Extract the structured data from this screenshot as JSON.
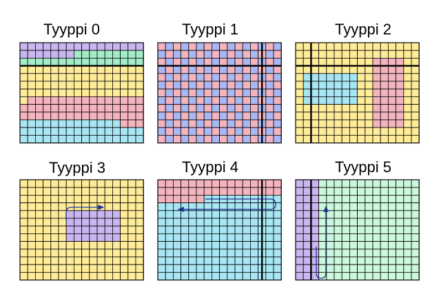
{
  "colors": {
    "purple": "#c9b6f0",
    "green": "#a4ecc8",
    "yellow": "#ffec99",
    "pink": "#f4b4be",
    "cyan": "#a8e6f4",
    "blue": "#a9b8f4",
    "lightgreen": "#ccf8dc",
    "grid": "#000000",
    "arrow": "#1e2f94"
  },
  "panels": [
    {
      "title": "Tyyppi 0"
    },
    {
      "title": "Tyyppi 1"
    },
    {
      "title": "Tyyppi 2"
    },
    {
      "title": "Tyyppi 3"
    },
    {
      "title": "Tyyppi 4"
    },
    {
      "title": "Tyyppi 5"
    }
  ]
}
